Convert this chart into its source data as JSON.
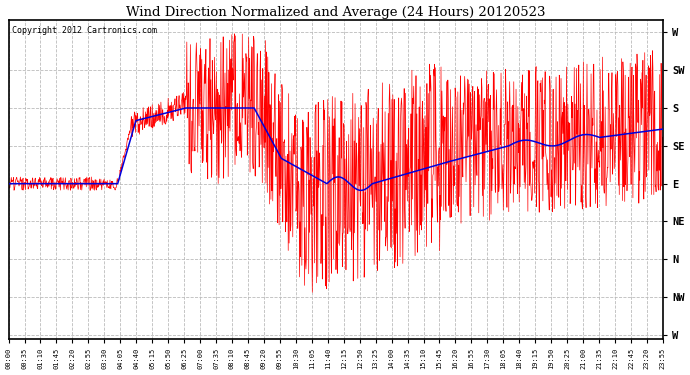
{
  "title": "Wind Direction Normalized and Average (24 Hours) 20120523",
  "copyright_text": "Copyright 2012 Cartronics.com",
  "background_color": "#ffffff",
  "plot_bg_color": "#ffffff",
  "grid_color": "#bbbbbb",
  "red_line_color": "#ff0000",
  "blue_line_color": "#0000dd",
  "ytick_labels": [
    "W",
    "SW",
    "S",
    "SE",
    "E",
    "NE",
    "N",
    "NW",
    "W"
  ],
  "ytick_values": [
    360,
    315,
    270,
    225,
    180,
    135,
    90,
    45,
    0
  ],
  "ylim": [
    -5,
    375
  ],
  "xtick_labels": [
    "00:00",
    "00:35",
    "01:10",
    "01:45",
    "02:20",
    "02:55",
    "03:30",
    "04:05",
    "04:40",
    "05:15",
    "05:50",
    "06:25",
    "07:00",
    "07:35",
    "08:10",
    "08:45",
    "09:20",
    "09:55",
    "10:30",
    "11:05",
    "11:40",
    "12:15",
    "12:50",
    "13:25",
    "14:00",
    "14:35",
    "15:10",
    "15:45",
    "16:20",
    "16:55",
    "17:30",
    "18:05",
    "18:40",
    "19:15",
    "19:50",
    "20:25",
    "21:00",
    "21:35",
    "22:10",
    "22:45",
    "23:20",
    "23:55"
  ],
  "seed": 12345,
  "n_points": 1440
}
